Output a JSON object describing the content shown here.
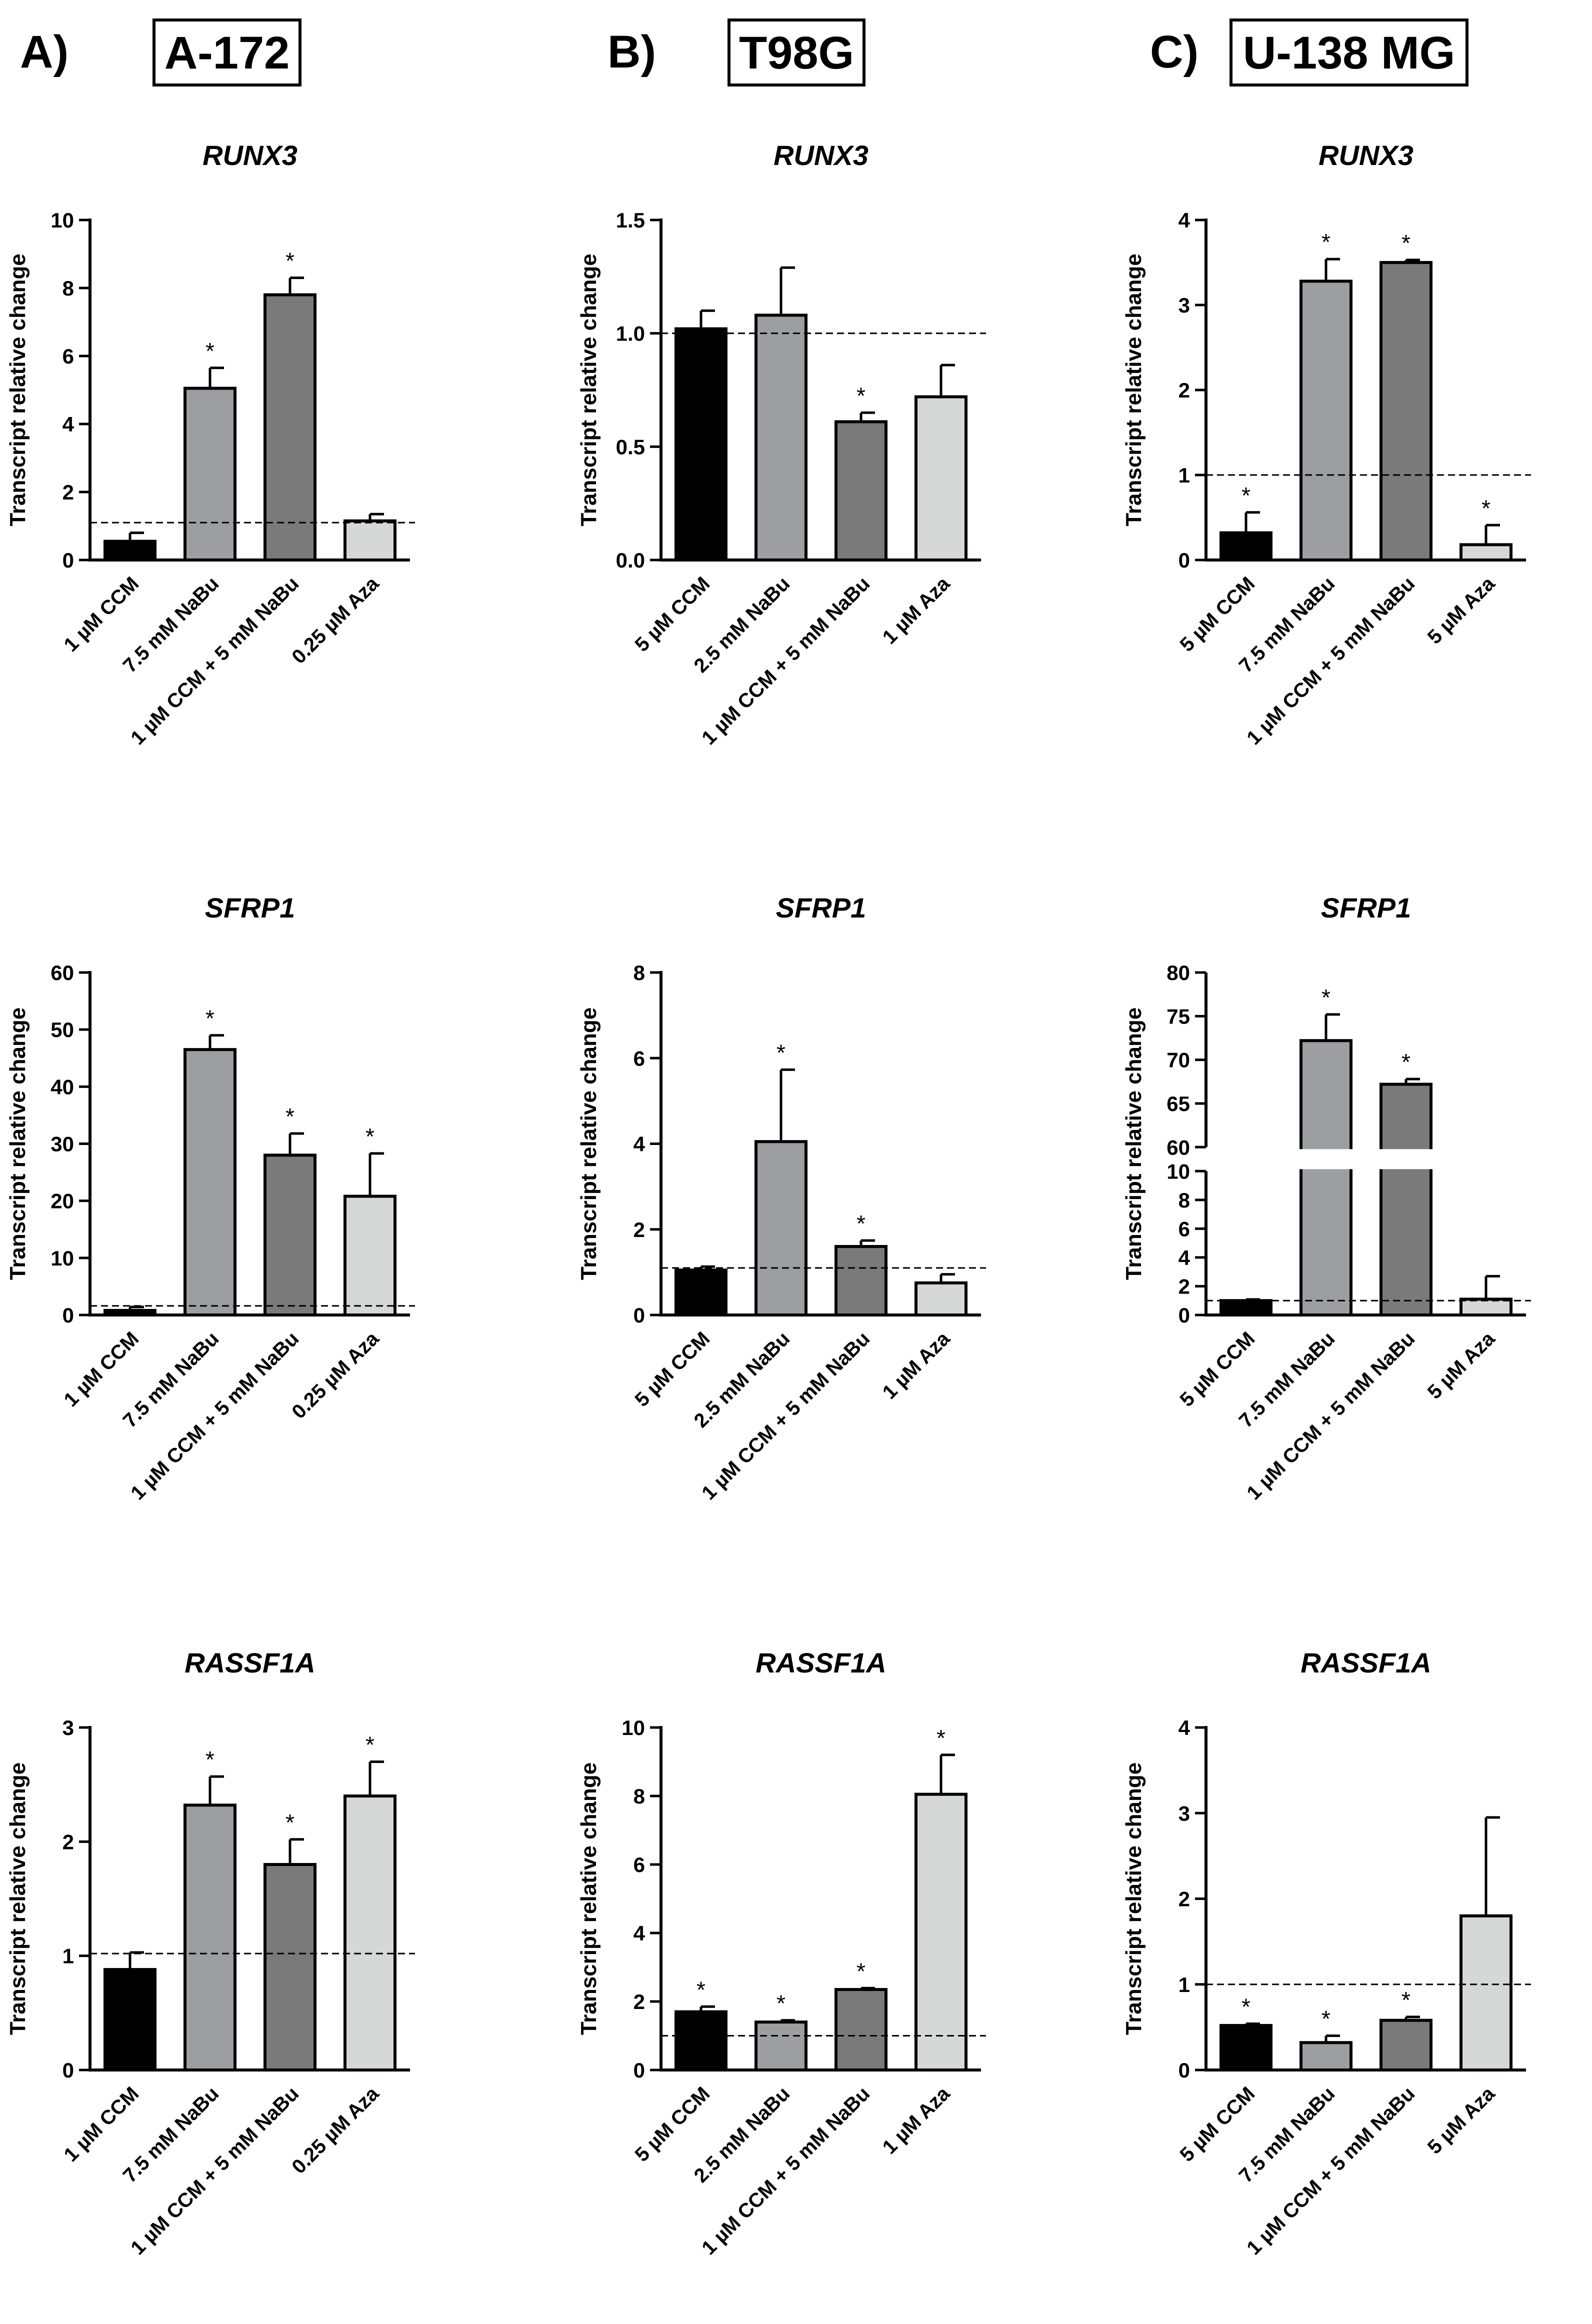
{
  "figure": {
    "columns": [
      {
        "letter": "A)",
        "cell_line": "A-172"
      },
      {
        "letter": "B)",
        "cell_line": "T98G"
      },
      {
        "letter": "C)",
        "cell_line": "U-138 MG"
      }
    ],
    "y_label": "Transcript relative change",
    "significance_marker": "*"
  },
  "colors": {
    "bar1": "#000000",
    "bar2": "#9d9ea2",
    "bar3": "#7a7a7a",
    "bar4": "#d6d7d7",
    "axis": "#000000"
  },
  "chart_data": [
    {
      "id": "a-runx3",
      "type": "bar",
      "title": "RUNX3",
      "ylabel": "Transcript relative change",
      "categories": [
        "1 µM CCM",
        "7.5 mM NaBu",
        "1 µM CCM + 5 mM NaBu",
        "0.25 µM Aza"
      ],
      "values": [
        0.55,
        5.05,
        7.8,
        1.15
      ],
      "errors": [
        0.25,
        0.6,
        0.5,
        0.2
      ],
      "significant": [
        false,
        true,
        true,
        false
      ],
      "ylim": [
        0,
        10
      ],
      "ticks": [
        "0",
        "2",
        "4",
        "6",
        "8",
        "10"
      ],
      "tick_values": [
        0,
        2,
        4,
        6,
        8,
        10
      ],
      "reference_line": 1.1
    },
    {
      "id": "b-runx3",
      "type": "bar",
      "title": "RUNX3",
      "ylabel": "Transcript relative change",
      "categories": [
        "5 µM CCM",
        "2.5 mM NaBu",
        "1 µM CCM + 5 mM NaBu",
        "1 µM Aza"
      ],
      "values": [
        1.02,
        1.08,
        0.61,
        0.72
      ],
      "errors": [
        0.08,
        0.21,
        0.04,
        0.14
      ],
      "significant": [
        false,
        false,
        true,
        false
      ],
      "ylim": [
        0,
        1.5
      ],
      "ticks": [
        "0.0",
        "0.5",
        "1.0",
        "1.5"
      ],
      "tick_values": [
        0,
        0.5,
        1.0,
        1.5
      ],
      "reference_line": 1.0
    },
    {
      "id": "c-runx3",
      "type": "bar",
      "title": "RUNX3",
      "ylabel": "Transcript relative change",
      "categories": [
        "5 µM CCM",
        "7.5 mM NaBu",
        "1 µM CCM + 5 mM NaBu",
        "5 µM Aza"
      ],
      "values": [
        0.32,
        3.28,
        3.5,
        0.18
      ],
      "errors": [
        0.24,
        0.26,
        0.03,
        0.23
      ],
      "significant": [
        true,
        true,
        true,
        true
      ],
      "ylim": [
        0,
        4
      ],
      "ticks": [
        "0",
        "1",
        "2",
        "3",
        "4"
      ],
      "tick_values": [
        0,
        1,
        2,
        3,
        4
      ],
      "reference_line": 1.0
    },
    {
      "id": "a-sfrp1",
      "type": "bar",
      "title": "SFRP1",
      "ylabel": "Transcript relative change",
      "categories": [
        "1 µM CCM",
        "7.5 mM NaBu",
        "1 µM CCM + 5 mM NaBu",
        "0.25 µM Aza"
      ],
      "values": [
        0.8,
        46.5,
        28.0,
        20.8
      ],
      "errors": [
        0.6,
        2.5,
        3.8,
        7.5
      ],
      "significant": [
        false,
        true,
        true,
        true
      ],
      "ylim": [
        0,
        60
      ],
      "ticks": [
        "0",
        "10",
        "20",
        "30",
        "40",
        "50",
        "60"
      ],
      "tick_values": [
        0,
        10,
        20,
        30,
        40,
        50,
        60
      ],
      "reference_line": 1.6
    },
    {
      "id": "b-sfrp1",
      "type": "bar",
      "title": "SFRP1",
      "ylabel": "Transcript relative change",
      "categories": [
        "5 µM CCM",
        "2.5 mM NaBu",
        "1 µM CCM + 5 mM NaBu",
        "1 µM Aza"
      ],
      "values": [
        1.05,
        4.05,
        1.6,
        0.75
      ],
      "errors": [
        0.08,
        1.68,
        0.14,
        0.2
      ],
      "significant": [
        false,
        true,
        true,
        false
      ],
      "ylim": [
        0,
        8
      ],
      "ticks": [
        "0",
        "2",
        "4",
        "6",
        "8"
      ],
      "tick_values": [
        0,
        2,
        4,
        6,
        8
      ],
      "reference_line": 1.1
    },
    {
      "id": "c-sfrp1",
      "type": "bar",
      "title": "SFRP1",
      "ylabel": "Transcript relative change",
      "categories": [
        "5 µM CCM",
        "7.5 mM NaBu",
        "1 µM CCM + 5 mM NaBu",
        "5 µM Aza"
      ],
      "values": [
        1.0,
        72.2,
        67.2,
        1.1
      ],
      "errors": [
        0.08,
        3.0,
        0.6,
        1.6
      ],
      "significant": [
        false,
        true,
        true,
        false
      ],
      "ylim": [
        0,
        80
      ],
      "axis_break": [
        10,
        60
      ],
      "ticks": [
        "0",
        "2",
        "4",
        "6",
        "8",
        "10",
        "60",
        "65",
        "70",
        "75",
        "80"
      ],
      "tick_values": [
        0,
        2,
        4,
        6,
        8,
        10,
        60,
        65,
        70,
        75,
        80
      ],
      "reference_line": 1.0
    },
    {
      "id": "a-rassf1a",
      "type": "bar",
      "title": "RASSF1A",
      "ylabel": "Transcript relative change",
      "categories": [
        "1 µM CCM",
        "7.5 mM NaBu",
        "1 µM CCM + 5 mM NaBu",
        "0.25 µM Aza"
      ],
      "values": [
        0.88,
        2.32,
        1.8,
        2.4
      ],
      "errors": [
        0.15,
        0.25,
        0.22,
        0.3
      ],
      "significant": [
        false,
        true,
        true,
        true
      ],
      "ylim": [
        0,
        3
      ],
      "ticks": [
        "0",
        "1",
        "2",
        "3"
      ],
      "tick_values": [
        0,
        1,
        2,
        3
      ],
      "reference_line": 1.02
    },
    {
      "id": "b-rassf1a",
      "type": "bar",
      "title": "RASSF1A",
      "ylabel": "Transcript relative change",
      "categories": [
        "5 µM CCM",
        "2.5 mM NaBu",
        "1 µM CCM + 5 mM NaBu",
        "1 µM Aza"
      ],
      "values": [
        1.7,
        1.4,
        2.35,
        8.05
      ],
      "errors": [
        0.15,
        0.05,
        0.04,
        1.15
      ],
      "significant": [
        true,
        true,
        true,
        true
      ],
      "ylim": [
        0,
        10
      ],
      "ticks": [
        "0",
        "2",
        "4",
        "6",
        "8",
        "10"
      ],
      "tick_values": [
        0,
        2,
        4,
        6,
        8,
        10
      ],
      "reference_line": 1.0
    },
    {
      "id": "c-rassf1a",
      "type": "bar",
      "title": "RASSF1A",
      "ylabel": "Transcript relative change",
      "categories": [
        "5 µM CCM",
        "7.5 mM NaBu",
        "1 µM CCM + 5 mM NaBu",
        "5 µM Aza"
      ],
      "values": [
        0.52,
        0.32,
        0.58,
        1.8
      ],
      "errors": [
        0.02,
        0.08,
        0.04,
        1.15
      ],
      "significant": [
        true,
        true,
        true,
        false
      ],
      "ylim": [
        0,
        4
      ],
      "ticks": [
        "0",
        "1",
        "2",
        "3",
        "4"
      ],
      "tick_values": [
        0,
        1,
        2,
        3,
        4
      ],
      "reference_line": 1.0
    }
  ]
}
